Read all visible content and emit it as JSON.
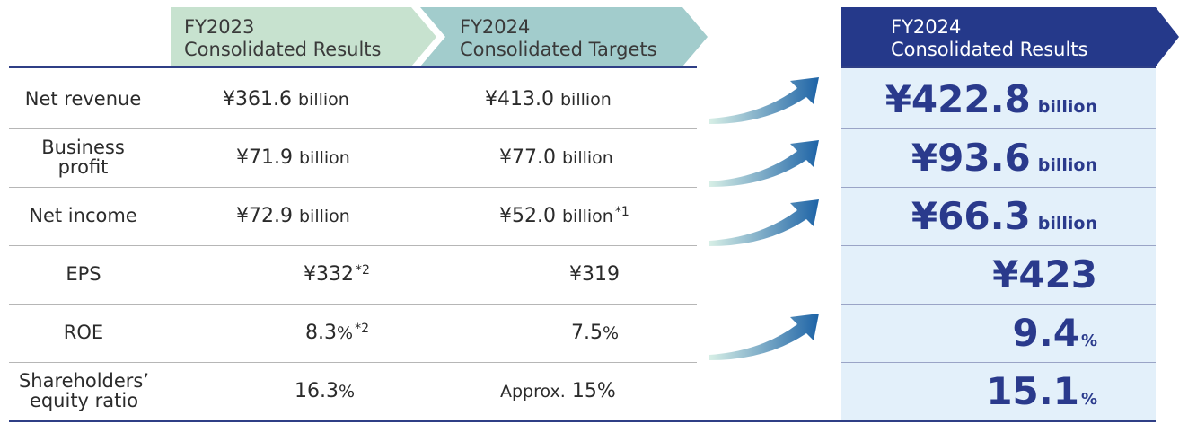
{
  "headers": {
    "fy2023": {
      "line1": "FY2023",
      "line2": "Consolidated Results"
    },
    "fy2024_targets": {
      "line1": "FY2024",
      "line2": "Consolidated Targets"
    },
    "fy2024_results": {
      "line1": "FY2024",
      "line2": "Consolidated Results"
    }
  },
  "colors": {
    "fy2023_header": "#c7e2cf",
    "fy2024_target_header": "#a2cccc",
    "fy2024_result_header": "#25398a",
    "result_panel": "#e3f0fa",
    "result_text": "#2a3a8c",
    "arrow_start": "#d7efe6",
    "arrow_end": "#1d63a6"
  },
  "rows": [
    {
      "label": "Net revenue",
      "fy2023": "¥361.6",
      "fy2023_unit": "billion",
      "fy2023_note": "",
      "target": "¥413.0",
      "target_prefix": "",
      "target_unit": "billion",
      "target_note": "",
      "result": "¥422.8",
      "result_unit": "billion"
    },
    {
      "label_line1": "Business",
      "label_line2": "profit",
      "fy2023": "¥71.9",
      "fy2023_unit": "billion",
      "fy2023_note": "",
      "target": "¥77.0",
      "target_prefix": "",
      "target_unit": "billion",
      "target_note": "",
      "result": "¥93.6",
      "result_unit": "billion"
    },
    {
      "label": "Net income",
      "fy2023": "¥72.9",
      "fy2023_unit": "billion",
      "fy2023_note": "",
      "target": "¥52.0",
      "target_prefix": "",
      "target_unit": "billion",
      "target_note": "*1",
      "result": "¥66.3",
      "result_unit": "billion"
    },
    {
      "label": "EPS",
      "fy2023": "¥332",
      "fy2023_unit": "",
      "fy2023_note": "*2",
      "target": "¥319",
      "target_prefix": "",
      "target_unit": "",
      "target_note": "",
      "result": "¥423",
      "result_unit": ""
    },
    {
      "label": "ROE",
      "fy2023": "8.3",
      "fy2023_unit": "%",
      "fy2023_note": "*2",
      "target": "7.5",
      "target_prefix": "",
      "target_unit": "%",
      "target_note": "",
      "result": "9.4",
      "result_unit": "%"
    },
    {
      "label_line1": "Shareholders’",
      "label_line2": "equity ratio",
      "fy2023": "16.3",
      "fy2023_unit": "%",
      "fy2023_note": "",
      "target": "15",
      "target_prefix": "Approx.",
      "target_unit": "%",
      "target_note": "",
      "result": "15.1",
      "result_unit": "%"
    }
  ]
}
